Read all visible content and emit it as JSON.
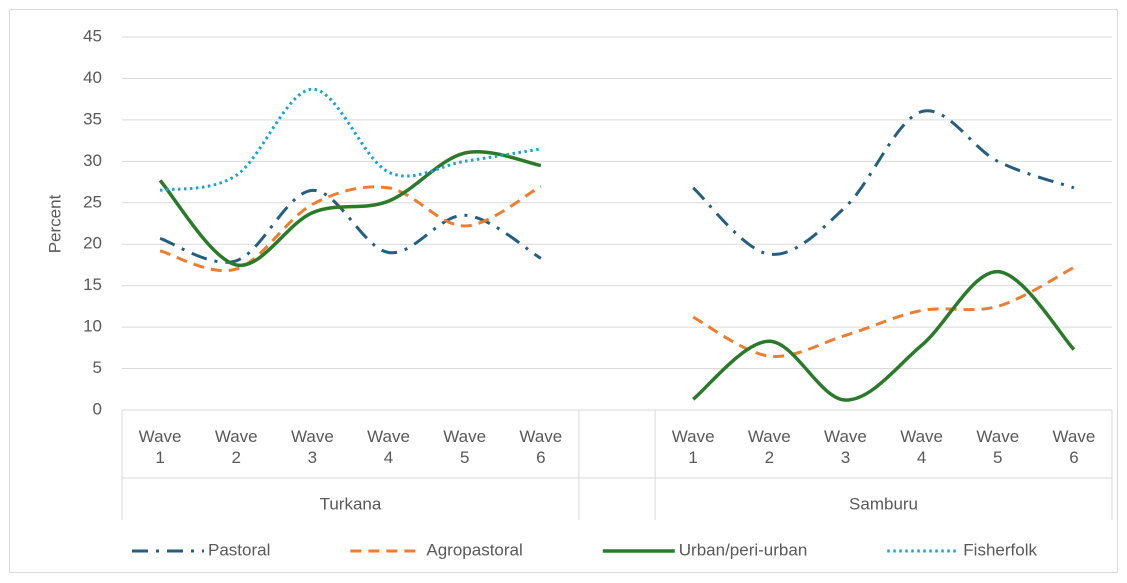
{
  "chart_data": {
    "type": "line",
    "smooth": true,
    "y_label": "Percent",
    "categories": [
      "Wave 1",
      "Wave 2",
      "Wave 3",
      "Wave 4",
      "Wave 5",
      "Wave 6",
      null,
      "Wave 1",
      "Wave 2",
      "Wave 3",
      "Wave 4",
      "Wave 5",
      "Wave 6"
    ],
    "category_groups": [
      "Turkana",
      "Samburu"
    ],
    "ylim": [
      0,
      45
    ],
    "yticks": [
      0,
      5,
      10,
      15,
      20,
      25,
      30,
      35,
      40,
      45
    ],
    "grid": true,
    "legend": "bottom",
    "series": [
      {
        "name": "Pastoral",
        "color": "#255e7e",
        "dash": "dash-dot",
        "values": [
          20.7,
          18,
          26.5,
          19,
          23.5,
          18.3,
          null,
          26.8,
          18.8,
          24.5,
          36,
          30,
          26.8
        ]
      },
      {
        "name": "Agropastoral",
        "color": "#ed7d31",
        "dash": "dash",
        "values": [
          19.2,
          17,
          24.8,
          26.8,
          22.2,
          27,
          null,
          11.2,
          6.5,
          9,
          12,
          12.5,
          17.2
        ]
      },
      {
        "name": "Urban/peri-urban",
        "color": "#2b7a2b",
        "dash": "solid",
        "values": [
          27.7,
          17.5,
          23.8,
          25.2,
          31,
          29.5,
          null,
          1.3,
          8.3,
          1.2,
          7.8,
          16.7,
          7.3
        ]
      },
      {
        "name": "Fisherfolk",
        "color": "#1ba1d8",
        "dash": "dot",
        "values": [
          26.5,
          28.3,
          38.7,
          28.7,
          30,
          31.5,
          null,
          null,
          null,
          null,
          null,
          null,
          null
        ]
      }
    ]
  }
}
